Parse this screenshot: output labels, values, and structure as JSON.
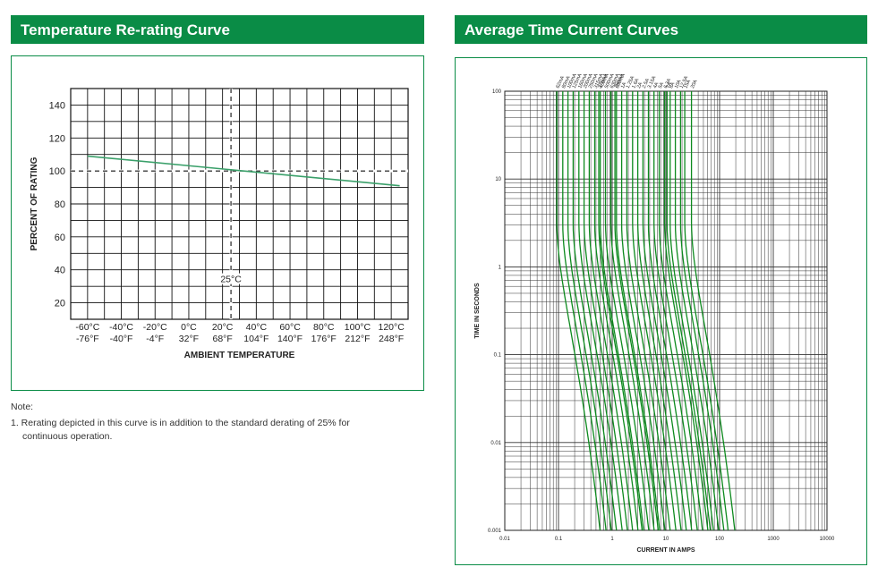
{
  "left_header": "Temperature Re-rating Curve",
  "right_header": "Average Time Current Curves",
  "note": {
    "title": "Note:",
    "line1": "1.  Rerating depicted in this curve is in addition to the standard derating of 25% for",
    "line2": "continuous operation."
  },
  "chart_data": [
    {
      "type": "line",
      "title": "Temperature Re-rating Curve",
      "xlabel": "AMBIENT TEMPERATURE",
      "ylabel": "PERCENT OF RATING",
      "xlim": [
        -70,
        130
      ],
      "ylim": [
        10,
        150
      ],
      "x_ticks": [
        -60,
        -40,
        -20,
        0,
        20,
        40,
        60,
        80,
        100,
        120
      ],
      "x_tick_labels_c": [
        "-60°C",
        "-40°C",
        "-20°C",
        "0°C",
        "20°C",
        "40°C",
        "60°C",
        "80°C",
        "100°C",
        "120°C"
      ],
      "x_tick_labels_f": [
        "-76°F",
        "-40°F",
        "-4°F",
        "32°F",
        "68°F",
        "104°F",
        "140°F",
        "176°F",
        "212°F",
        "248°F"
      ],
      "y_ticks": [
        20,
        40,
        60,
        80,
        100,
        120,
        140
      ],
      "y_tick_labels": [
        "20",
        "40",
        "60",
        "80",
        "100",
        "120",
        "140"
      ],
      "series": [
        {
          "name": "re-rating",
          "x": [
            -60,
            125
          ],
          "y": [
            109,
            91
          ],
          "color": "#3aa06a"
        }
      ],
      "reference_lines": {
        "x": 25,
        "y": 100
      },
      "annotation": "25°C"
    },
    {
      "type": "line",
      "title": "Average Time Current Curves",
      "xlabel": "CURRENT IN AMPS",
      "ylabel": "TIME IN SECONDS",
      "x_scale": "log",
      "y_scale": "log",
      "xlim": [
        0.01,
        10000
      ],
      "ylim": [
        0.001,
        100
      ],
      "x_tick_labels": [
        "0.01",
        "0.1",
        "1",
        "10",
        "100",
        "1000",
        "10000"
      ],
      "y_tick_labels": [
        "0.001",
        "0.01",
        "0.1",
        "1",
        "10",
        "100"
      ],
      "curve_color": "#0d8a1e",
      "series": [
        {
          "name": "62mA",
          "rating": 0.062
        },
        {
          "name": "80mA",
          "rating": 0.08
        },
        {
          "name": "100mA",
          "rating": 0.1
        },
        {
          "name": "125mA",
          "rating": 0.125
        },
        {
          "name": "160mA",
          "rating": 0.16
        },
        {
          "name": "200mA",
          "rating": 0.2
        },
        {
          "name": "250mA",
          "rating": 0.25
        },
        {
          "name": "315mA",
          "rating": 0.315
        },
        {
          "name": "375mA",
          "rating": 0.375
        },
        {
          "name": "400mA",
          "rating": 0.4
        },
        {
          "name": "500mA",
          "rating": 0.5
        },
        {
          "name": "630mA",
          "rating": 0.63
        },
        {
          "name": "750mA",
          "rating": 0.75
        },
        {
          "name": "800mA",
          "rating": 0.8
        },
        {
          "name": "1A",
          "rating": 1
        },
        {
          "name": "1.25A",
          "rating": 1.25
        },
        {
          "name": "1.6A",
          "rating": 1.6
        },
        {
          "name": "2A",
          "rating": 2
        },
        {
          "name": "2.5A",
          "rating": 2.5
        },
        {
          "name": "3.15A",
          "rating": 3.15
        },
        {
          "name": "4A",
          "rating": 4
        },
        {
          "name": "5A",
          "rating": 5
        },
        {
          "name": "6.3A",
          "rating": 6.3
        },
        {
          "name": "7A",
          "rating": 7
        },
        {
          "name": "8A",
          "rating": 8
        },
        {
          "name": "10A",
          "rating": 10
        },
        {
          "name": "12.5A",
          "rating": 12.5
        },
        {
          "name": "15A",
          "rating": 15
        },
        {
          "name": "20A",
          "rating": 20
        }
      ]
    }
  ]
}
